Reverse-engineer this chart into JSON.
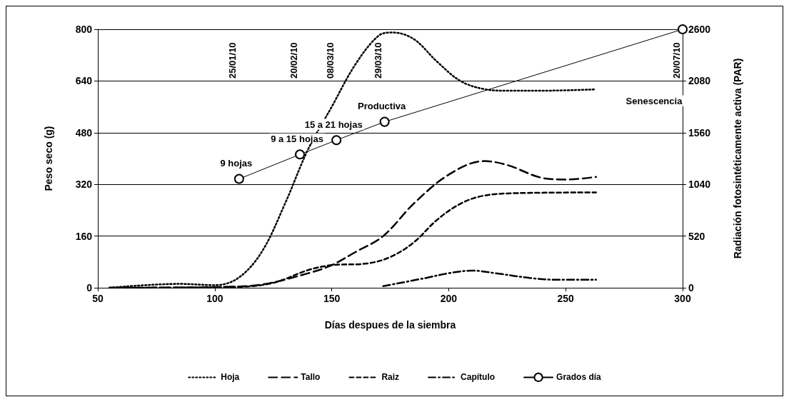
{
  "chart_data": {
    "type": "line",
    "xlabel": "Días despues de la siembra",
    "ylabel": "Peso seco (g)",
    "y2label": "Radiación fotosintéticamente activa (PAR)",
    "xlim": [
      50,
      300
    ],
    "xticks": [
      50,
      100,
      150,
      200,
      250,
      300
    ],
    "ylim": [
      0,
      800
    ],
    "yticks": [
      0,
      160,
      320,
      480,
      640,
      800
    ],
    "y2lim": [
      0,
      2600
    ],
    "y2ticks": [
      0,
      520,
      1040,
      1560,
      2080,
      2600
    ],
    "grid": "y",
    "legend": "bottom",
    "series": [
      {
        "name": "Hoja",
        "color": "#000000",
        "line_style": "dotted",
        "marker": "none",
        "x": [
          55,
          85,
          100,
          110,
          120,
          130,
          140,
          150,
          160,
          170,
          176,
          185,
          195,
          205,
          215,
          225,
          240,
          263
        ],
        "values": [
          0,
          12,
          8,
          30,
          110,
          260,
          430,
          560,
          690,
          780,
          790,
          770,
          700,
          640,
          615,
          610,
          610,
          614
        ]
      },
      {
        "name": "Tallo",
        "color": "#000000",
        "line_style": "longdash",
        "marker": "none",
        "x": [
          55,
          100,
          120,
          140,
          150,
          160,
          172,
          185,
          200,
          215,
          225,
          240,
          250,
          263
        ],
        "values": [
          0,
          2,
          10,
          45,
          70,
          110,
          160,
          260,
          350,
          392,
          380,
          340,
          335,
          343
        ]
      },
      {
        "name": "Raiz",
        "color": "#000000",
        "line_style": "dashed",
        "marker": "none",
        "x": [
          55,
          110,
          125,
          140,
          150,
          165,
          175,
          185,
          195,
          205,
          215,
          230,
          263
        ],
        "values": [
          0,
          3,
          15,
          55,
          70,
          75,
          95,
          140,
          210,
          260,
          285,
          293,
          295
        ]
      },
      {
        "name": "Capítulo",
        "color": "#000000",
        "line_style": "dashdot",
        "marker": "none",
        "x": [
          172,
          190,
          200,
          210,
          220,
          235,
          245,
          263
        ],
        "values": [
          5,
          30,
          45,
          53,
          45,
          30,
          25,
          25
        ]
      },
      {
        "name": "Grados día",
        "color": "#000000",
        "line_style": "solid",
        "marker": "circle",
        "axis": "y2",
        "x": [
          110.4,
          136.4,
          152,
          172.6,
          300
        ],
        "values": [
          1095,
          1341,
          1485,
          1669,
          2600
        ]
      }
    ],
    "annotations": [
      "25/01/10",
      "20/02/10",
      "08/03/10",
      "29/03/10",
      "20/07/10",
      "9 hojas",
      "9 a 15 hojas",
      "15 a 21 hojas",
      "Productiva",
      "Senescencia"
    ]
  }
}
